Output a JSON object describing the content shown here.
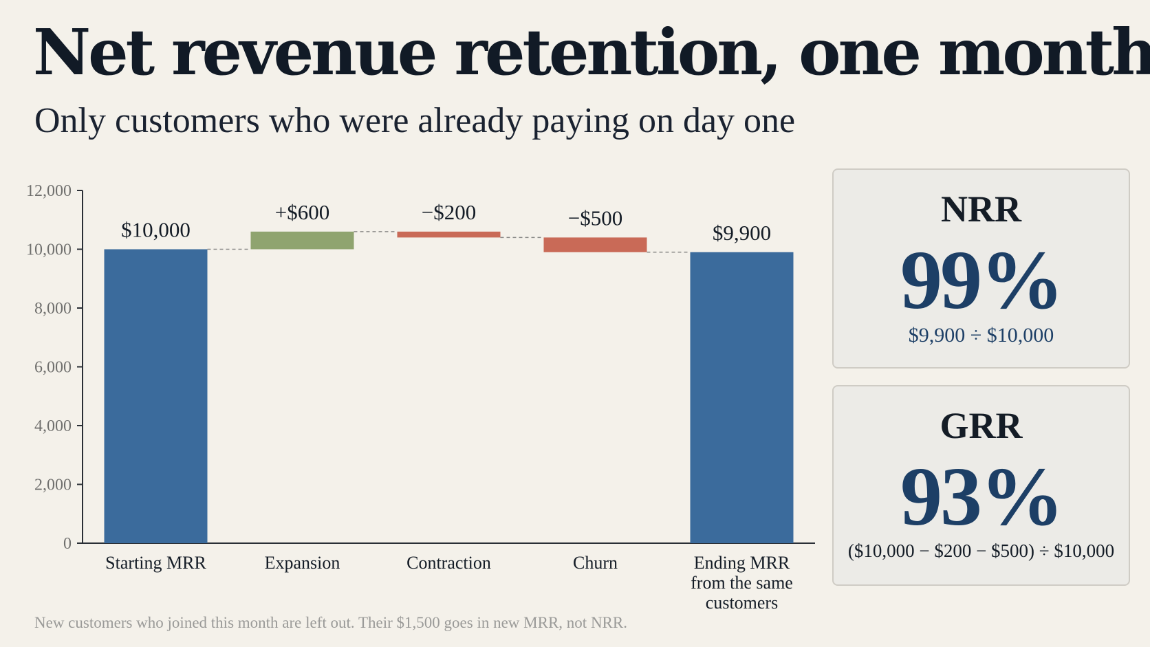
{
  "header": {
    "title": "Net revenue retention, one month",
    "subtitle": "Only customers who were already paying on day one"
  },
  "chart_data": {
    "type": "bar",
    "subtype": "waterfall",
    "categories": [
      "Starting MRR",
      "Expansion",
      "Contraction",
      "Churn",
      "Ending MRR\nfrom the same\ncustomers"
    ],
    "bars": [
      {
        "kind": "total",
        "start": 0,
        "end": 10000,
        "label": "$10,000",
        "color": "#3b6b9c"
      },
      {
        "kind": "increase",
        "start": 10000,
        "end": 10600,
        "label": "+$600",
        "color": "#8fa46f"
      },
      {
        "kind": "decrease",
        "start": 10600,
        "end": 10400,
        "label": "−$200",
        "color": "#c96a57"
      },
      {
        "kind": "decrease",
        "start": 10400,
        "end": 9900,
        "label": "−$500",
        "color": "#c96a57"
      },
      {
        "kind": "total",
        "start": 0,
        "end": 9900,
        "label": "$9,900",
        "color": "#3b6b9c"
      }
    ],
    "ylim": [
      0,
      12000
    ],
    "yticks": [
      0,
      2000,
      4000,
      6000,
      8000,
      10000,
      12000
    ],
    "ytick_labels": [
      "0",
      "2,000",
      "4,000",
      "6,000",
      "8,000",
      "10,000",
      "12,000"
    ],
    "connectors": true,
    "grid": false
  },
  "metrics": {
    "nrr": {
      "label": "NRR",
      "value": "99%",
      "formula": "$9,900 ÷ $10,000"
    },
    "grr": {
      "label": "GRR",
      "value": "93%",
      "formula": "($10,000 − $200 − $500) ÷ $10,000"
    }
  },
  "footnote": "New customers who joined this month are left out. Their $1,500 goes in new MRR, not NRR."
}
